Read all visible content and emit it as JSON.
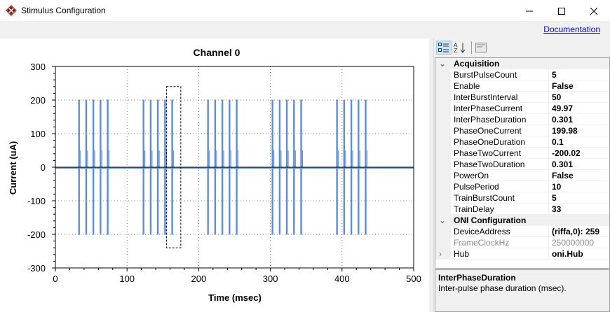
{
  "window": {
    "title": "Stimulus Configuration",
    "documentation_link": "Documentation"
  },
  "chart_data": {
    "type": "line",
    "title": "Channel 0",
    "xlabel": "Time (msec)",
    "ylabel": "Current (uA)",
    "xlim": [
      0,
      500
    ],
    "ylim": [
      -300,
      300
    ],
    "xticks": [
      "0",
      "100",
      "200",
      "300",
      "400",
      "500"
    ],
    "yticks": [
      "300",
      "200",
      "100",
      "0",
      "-100",
      "-200",
      "-300"
    ],
    "grid": true,
    "pulse_amplitude_positive": 199.98,
    "pulse_amplitude_negative": -200.02,
    "train_starts": [
      33,
      123,
      213,
      303,
      393
    ],
    "pulse_period": 10,
    "burst_pulse_count": 5,
    "selection_range": [
      155,
      175
    ],
    "series_color": "#5b8ddb"
  },
  "property_grid": {
    "categories": [
      {
        "name": "Acquisition",
        "properties": [
          {
            "name": "BurstPulseCount",
            "value": "5"
          },
          {
            "name": "Enable",
            "value": "False"
          },
          {
            "name": "InterBurstInterval",
            "value": "50"
          },
          {
            "name": "InterPhaseCurrent",
            "value": "49.97"
          },
          {
            "name": "InterPhaseDuration",
            "value": "0.301"
          },
          {
            "name": "PhaseOneCurrent",
            "value": "199.98"
          },
          {
            "name": "PhaseOneDuration",
            "value": "0.1"
          },
          {
            "name": "PhaseTwoCurrent",
            "value": "-200.02"
          },
          {
            "name": "PhaseTwoDuration",
            "value": "0.301"
          },
          {
            "name": "PowerOn",
            "value": "False"
          },
          {
            "name": "PulsePeriod",
            "value": "10"
          },
          {
            "name": "TrainBurstCount",
            "value": "5"
          },
          {
            "name": "TrainDelay",
            "value": "33"
          }
        ]
      },
      {
        "name": "ONI Configuration",
        "properties": [
          {
            "name": "DeviceAddress",
            "value": "(riffa,0): 259"
          },
          {
            "name": "FrameClockHz",
            "value": "250000000"
          },
          {
            "name": "Hub",
            "value": "oni.Hub"
          }
        ]
      }
    ],
    "help": {
      "title": "InterPhaseDuration",
      "description": "Inter-pulse phase duration (msec)."
    }
  }
}
